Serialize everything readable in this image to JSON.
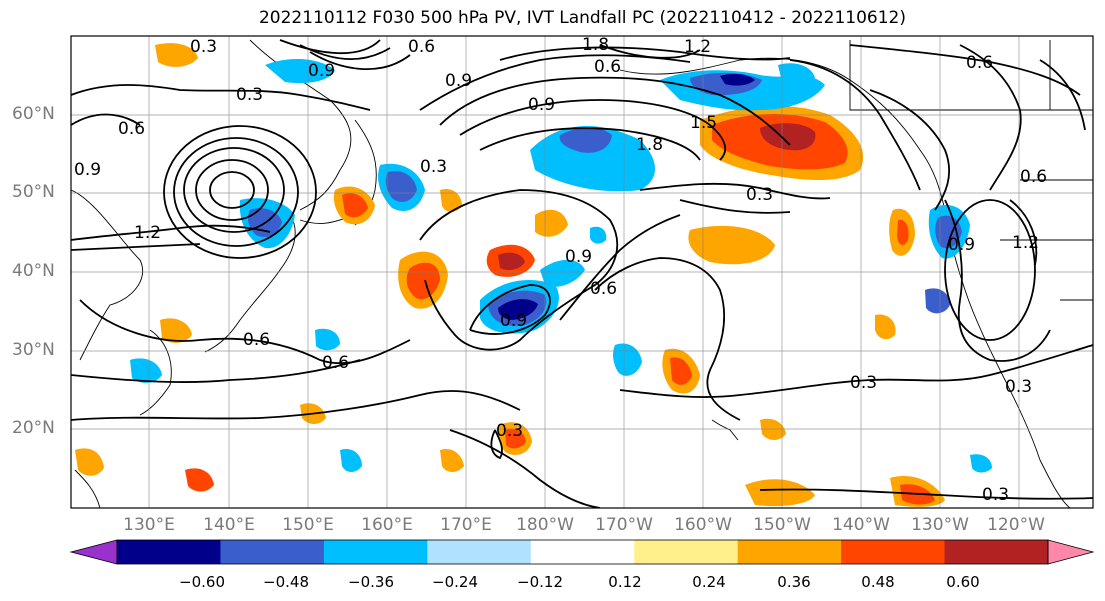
{
  "title": "2022110112 F030 500 hPa PV, IVT Landfall PC (2022110412 - 2022110612)",
  "map": {
    "lat_labels": [
      "60°N",
      "50°N",
      "40°N",
      "30°N",
      "20°N"
    ],
    "lon_labels": [
      "130°E",
      "140°E",
      "150°E",
      "160°E",
      "170°E",
      "180°W",
      "170°W",
      "160°W",
      "150°W",
      "140°W",
      "130°W",
      "120°W"
    ],
    "contour_labels": [
      "0.3",
      "0.6",
      "0.9",
      "1.2",
      "1.5",
      "1.8"
    ]
  },
  "colorbar": {
    "ticks": [
      "−0.60",
      "−0.48",
      "−0.36",
      "−0.24",
      "−0.12",
      "0.12",
      "0.24",
      "0.36",
      "0.48",
      "0.60"
    ],
    "colors": [
      "#9932cc",
      "#00008b",
      "#3a5fcd",
      "#00bfff",
      "#b0e2ff",
      "#ffffff",
      "#fff08c",
      "#ffa500",
      "#ff4500",
      "#b22222",
      "#ff88aa"
    ]
  }
}
